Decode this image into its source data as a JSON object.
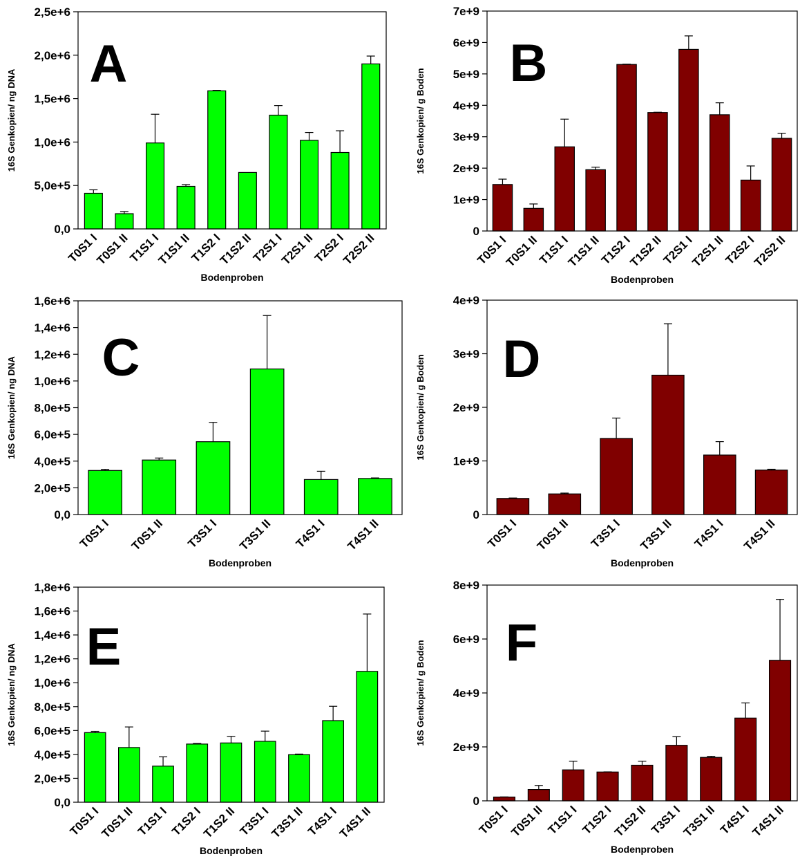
{
  "colors": {
    "green": "#00ff00",
    "maroon": "#800000",
    "axis": "#000000"
  },
  "chart_data": [
    {
      "panel": "A",
      "type": "bar",
      "color": "#00ff00",
      "ylabel": "16S Genkopien/ ng DNA",
      "xlabel": "Bodenproben",
      "ylim": [
        0,
        2500000
      ],
      "yticks": [
        0,
        500000,
        1000000,
        1500000,
        2000000,
        2500000
      ],
      "ytick_labels": [
        "0,0",
        "5,0e+5",
        "1,0e+6",
        "1,5e+6",
        "2,0e+6",
        "2,5e+6"
      ],
      "categories": [
        "T0S1 I",
        "T0S1 II",
        "T1S1 I",
        "T1S1 II",
        "T1S2 I",
        "T1S2 II",
        "T2S1 I",
        "T2S1 II",
        "T2S2 I",
        "T2S2 II"
      ],
      "values": [
        410000,
        175000,
        990000,
        490000,
        1590000,
        650000,
        1310000,
        1020000,
        880000,
        1900000
      ],
      "errors": [
        40000,
        25000,
        330000,
        20000,
        5000,
        0,
        110000,
        90000,
        250000,
        90000
      ]
    },
    {
      "panel": "B",
      "type": "bar",
      "color": "#800000",
      "ylabel": "16S Genkopien/ g Boden",
      "xlabel": "Bodenproben",
      "ylim": [
        0,
        7000000000
      ],
      "yticks": [
        0,
        1000000000,
        2000000000,
        3000000000,
        4000000000,
        5000000000,
        6000000000,
        7000000000
      ],
      "ytick_labels": [
        "0",
        "1e+9",
        "2e+9",
        "3e+9",
        "4e+9",
        "5e+9",
        "6e+9",
        "7e+9"
      ],
      "categories": [
        "T0S1 I",
        "T0S1 II",
        "T1S1 I",
        "T1S1 II",
        "T1S2 I",
        "T1S2 II",
        "T2S1 I",
        "T2S1 II",
        "T2S2 I",
        "T2S2 II"
      ],
      "values": [
        1480000000,
        720000000,
        2680000000,
        1950000000,
        5300000000,
        3770000000,
        5780000000,
        3700000000,
        1620000000,
        2950000000
      ],
      "errors": [
        170000000,
        140000000,
        880000000,
        80000000,
        10000000,
        10000000,
        430000000,
        380000000,
        450000000,
        160000000
      ]
    },
    {
      "panel": "C",
      "type": "bar",
      "color": "#00ff00",
      "ylabel": "16S Genkopien/ ng DNA",
      "xlabel": "Bodenproben",
      "ylim": [
        0,
        1600000
      ],
      "yticks": [
        0,
        200000,
        400000,
        600000,
        800000,
        1000000,
        1200000,
        1400000,
        1600000
      ],
      "ytick_labels": [
        "0,0",
        "2,0e+5",
        "4,0e+5",
        "6,0e+5",
        "8,0e+5",
        "1,0e+6",
        "1,2e+6",
        "1,4e+6",
        "1,6e+6"
      ],
      "categories": [
        "T0S1 I",
        "T0S1 II",
        "T3S1 I",
        "T3S1 II",
        "T4S1 I",
        "T4S1 II"
      ],
      "values": [
        330000,
        408000,
        545000,
        1090000,
        262000,
        270000
      ],
      "errors": [
        8000,
        15000,
        145000,
        400000,
        62000,
        4000
      ]
    },
    {
      "panel": "D",
      "type": "bar",
      "color": "#800000",
      "ylabel": "16S Genkopien/ g Boden",
      "xlabel": "Bodenproben",
      "ylim": [
        0,
        4000000000
      ],
      "yticks": [
        0,
        1000000000,
        2000000000,
        3000000000,
        4000000000
      ],
      "ytick_labels": [
        "0",
        "1e+9",
        "2e+9",
        "3e+9",
        "4e+9"
      ],
      "categories": [
        "T0S1 I",
        "T0S1 II",
        "T3S1 I",
        "T3S1 II",
        "T4S1 I",
        "T4S1 II"
      ],
      "values": [
        300000000,
        385000000,
        1420000000,
        2600000000,
        1110000000,
        830000000
      ],
      "errors": [
        8000000,
        15000000,
        380000000,
        960000000,
        250000000,
        15000000
      ]
    },
    {
      "panel": "E",
      "type": "bar",
      "color": "#00ff00",
      "ylabel": "16S Genkopien/ ng DNA",
      "xlabel": "Bodenproben",
      "ylim": [
        0,
        1800000
      ],
      "yticks": [
        0,
        200000,
        400000,
        600000,
        800000,
        1000000,
        1200000,
        1400000,
        1600000,
        1800000
      ],
      "ytick_labels": [
        "0,0",
        "2,0e+5",
        "4,0e+5",
        "6,0e+5",
        "8,0e+5",
        "1,0e+6",
        "1,2e+6",
        "1,4e+6",
        "1,6e+6",
        "1,8e+6"
      ],
      "categories": [
        "T0S1 I",
        "T0S1 II",
        "T1S1 I",
        "T1S2 I",
        "T1S2 II",
        "T3S1 I",
        "T3S1 II",
        "T4S1 I",
        "T4S1 II"
      ],
      "values": [
        583000,
        458000,
        302000,
        487000,
        496000,
        510000,
        398000,
        683000,
        1095000
      ],
      "errors": [
        10000,
        172000,
        78000,
        5000,
        55000,
        85000,
        5000,
        120000,
        480000
      ]
    },
    {
      "panel": "F",
      "type": "bar",
      "color": "#800000",
      "ylabel": "16S Genkopien/ g Boden",
      "xlabel": "Bodenproben",
      "ylim": [
        0,
        8000000000
      ],
      "yticks": [
        0,
        2000000000,
        4000000000,
        6000000000,
        8000000000
      ],
      "ytick_labels": [
        "0",
        "2e+9",
        "4e+9",
        "6e+9",
        "8e+9"
      ],
      "categories": [
        "T0S1 I",
        "T0S1 II",
        "T1S1 I",
        "T1S2 I",
        "T1S2 II",
        "T3S1 I",
        "T3S1 II",
        "T4S1 I",
        "T4S1 II"
      ],
      "values": [
        140000000,
        420000000,
        1150000000,
        1070000000,
        1320000000,
        2060000000,
        1610000000,
        3070000000,
        5210000000
      ],
      "errors": [
        5000000,
        150000000,
        320000000,
        5000000,
        150000000,
        320000000,
        40000000,
        560000000,
        2260000000
      ]
    }
  ]
}
